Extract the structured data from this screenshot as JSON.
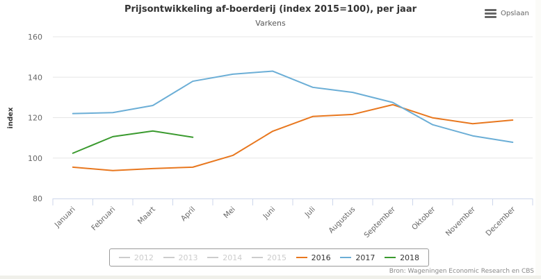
{
  "chart_data": {
    "type": "line",
    "title": "Prijsontwikkeling af-boerderij (index 2015=100), per jaar",
    "subtitle": "Varkens",
    "xlabel": "",
    "ylabel": "index",
    "ylim": [
      80,
      160
    ],
    "yticks": [
      80,
      100,
      120,
      140,
      160
    ],
    "grid": true,
    "legend_position": "bottom-center",
    "categories": [
      "Januari",
      "Februari",
      "Maart",
      "April",
      "Mei",
      "Juni",
      "Juli",
      "Augustus",
      "September",
      "Oktober",
      "November",
      "December"
    ],
    "series": [
      {
        "name": "2012",
        "visible": false,
        "color": "#cccccc",
        "values": []
      },
      {
        "name": "2013",
        "visible": false,
        "color": "#cccccc",
        "values": []
      },
      {
        "name": "2014",
        "visible": false,
        "color": "#cccccc",
        "values": []
      },
      {
        "name": "2015",
        "visible": false,
        "color": "#cccccc",
        "values": []
      },
      {
        "name": "2016",
        "visible": true,
        "color": "#e8771e",
        "values": [
          95.5,
          93.8,
          94.8,
          95.5,
          101.3,
          113.3,
          120.6,
          121.6,
          126.4,
          119.9,
          117.0,
          118.8
        ]
      },
      {
        "name": "2017",
        "visible": true,
        "color": "#6baed6",
        "values": [
          122.0,
          122.5,
          126.0,
          138.0,
          141.5,
          143.0,
          135.0,
          132.5,
          127.5,
          116.5,
          111.0,
          107.8
        ]
      },
      {
        "name": "2018",
        "visible": true,
        "color": "#3a9a2e",
        "values": [
          102.4,
          110.6,
          113.4,
          110.3
        ]
      }
    ]
  },
  "header": {
    "title": "Prijsontwikkeling af-boerderij (index 2015=100), per jaar",
    "subtitle": "Varkens"
  },
  "export": {
    "icon": "hamburger-menu-icon",
    "label": "Opslaan"
  },
  "legend": {
    "hidden_color": "#cccccc",
    "items": [
      {
        "label": "2012",
        "active": false
      },
      {
        "label": "2013",
        "active": false
      },
      {
        "label": "2014",
        "active": false
      },
      {
        "label": "2015",
        "active": false
      },
      {
        "label": "2016",
        "active": true,
        "color": "#e8771e"
      },
      {
        "label": "2017",
        "active": true,
        "color": "#6baed6"
      },
      {
        "label": "2018",
        "active": true,
        "color": "#3a9a2e"
      }
    ]
  },
  "credits": "Bron: Wageningen Economic Research en CBS"
}
